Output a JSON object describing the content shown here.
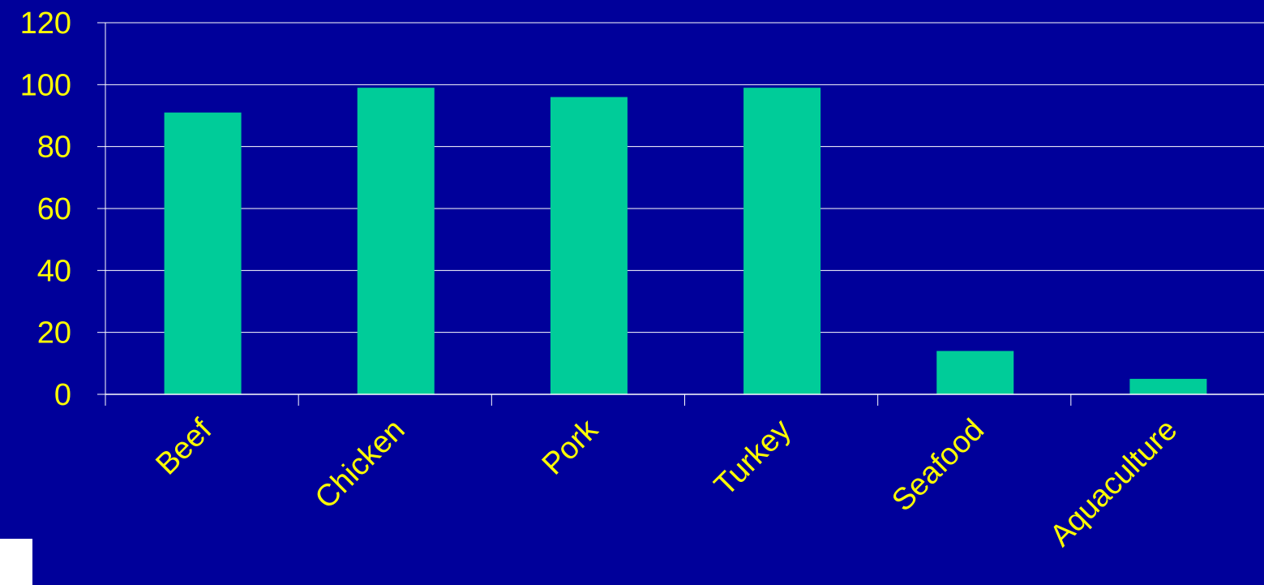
{
  "chart_data": {
    "type": "bar",
    "title": "",
    "xlabel": "",
    "ylabel": "",
    "categories": [
      "Beef",
      "Chicken",
      "Pork",
      "Turkey",
      "Seafood",
      "Aquaculture"
    ],
    "values": [
      91,
      99,
      96,
      99,
      14,
      5
    ],
    "ylim": [
      0,
      120
    ],
    "yticks": [
      "0",
      "20",
      "40",
      "60",
      "80",
      "100",
      "120"
    ],
    "grid": true,
    "colors": {
      "background": "#00009a",
      "bar": "#00cc99",
      "text": "#ffff00",
      "grid": "#ffffff"
    }
  }
}
